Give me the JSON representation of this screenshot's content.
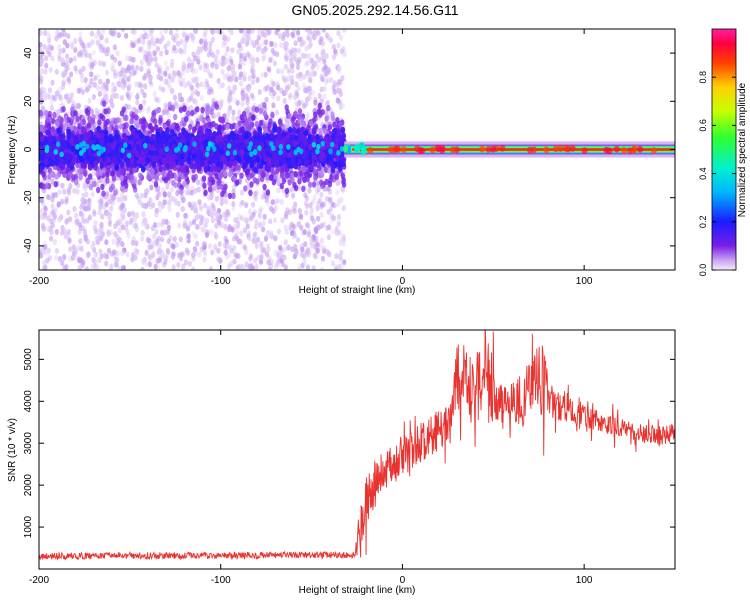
{
  "figure": {
    "title": "GN05.2025.292.14.56.G11"
  },
  "chart_data": [
    {
      "type": "heatmap",
      "xlabel": "Height of straight line (km)",
      "ylabel": "Frequency (Hz)",
      "xlim": [
        -200,
        150
      ],
      "ylim": [
        -50,
        50
      ],
      "x_ticks": [
        -200,
        -100,
        0,
        100
      ],
      "y_ticks": [
        -40,
        -20,
        0,
        20,
        40
      ],
      "colorbar": {
        "label": "Normalized spectral amplitude",
        "range": [
          0,
          1
        ],
        "ticks": [
          "0.0",
          "0.2",
          "0.4",
          "0.6",
          "0.8"
        ],
        "colormap": "rainbow (purple-blue-cyan-green-yellow-red-magenta)"
      },
      "regions": [
        {
          "x_range": [
            -200,
            -32
          ],
          "description": "broadband noise",
          "core_freq_hz": [
            -8,
            8
          ],
          "core_amplitude": 0.15,
          "halo_freq_hz": [
            -50,
            50
          ],
          "halo_amplitude": 0.04
        },
        {
          "x_range": [
            -32,
            150
          ],
          "description": "narrow carrier line",
          "freq_hz": [
            -1.5,
            1.5
          ],
          "amplitude": 1.0
        }
      ],
      "grid": false
    },
    {
      "type": "line",
      "xlabel": "Height of straight line (km)",
      "ylabel": "SNR (10 * v/v)",
      "xlim": [
        -200,
        150
      ],
      "ylim": [
        0,
        5700
      ],
      "x_ticks": [
        -200,
        -100,
        0,
        100
      ],
      "y_ticks": [
        1000,
        2000,
        3000,
        4000,
        5000
      ],
      "series_color": "#e8332f",
      "envelope": {
        "x": [
          -200,
          -150,
          -100,
          -60,
          -26,
          -24,
          -20,
          -18,
          -10,
          0,
          10,
          20,
          27,
          30,
          35,
          40,
          45,
          50,
          55,
          60,
          65,
          70,
          75,
          78,
          82,
          90,
          100,
          110,
          120,
          130,
          140,
          150
        ],
        "y": [
          300,
          320,
          320,
          330,
          330,
          700,
          1500,
          1900,
          2300,
          2700,
          3000,
          3300,
          3600,
          4500,
          4600,
          4200,
          4700,
          4300,
          4000,
          4000,
          4000,
          4200,
          4600,
          4400,
          3900,
          3800,
          3650,
          3500,
          3350,
          3250,
          3200,
          3250
        ]
      },
      "noise_amplitude": {
        "x": [
          -200,
          -26,
          -24,
          -10,
          25,
          30,
          50,
          55,
          70,
          78,
          82,
          100,
          150
        ],
        "y": [
          80,
          80,
          700,
          500,
          500,
          900,
          900,
          300,
          800,
          900,
          350,
          250,
          250
        ]
      }
    }
  ]
}
